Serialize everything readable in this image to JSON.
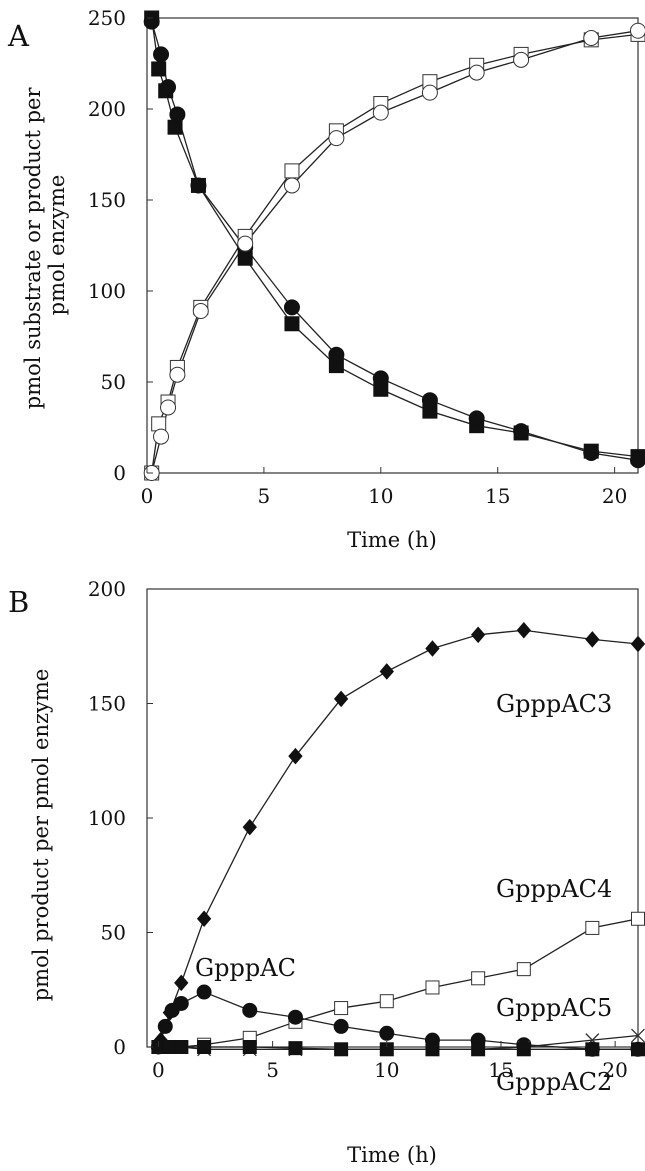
{
  "chart_data": [
    {
      "panel": "A",
      "type": "line",
      "xlabel": "Time (h)",
      "ylabel": [
        "pmol substrate or product per",
        "pmol enzyme"
      ],
      "xlim": [
        0,
        21
      ],
      "ylim": [
        0,
        250
      ],
      "xticks": [
        "0",
        "5",
        "10",
        "15",
        "20"
      ],
      "xtick_values": [
        0,
        5,
        10,
        15,
        20
      ],
      "yticks": [
        "0",
        "50",
        "100",
        "150",
        "200",
        "250"
      ],
      "ytick_values": [
        0,
        50,
        100,
        150,
        200,
        250
      ],
      "grid": false,
      "series": [
        {
          "marker": "filled-square",
          "x": [
            0.2,
            0.5,
            0.8,
            1.2,
            2.2,
            4.2,
            6.2,
            8.1,
            10,
            12.1,
            14.1,
            16,
            19,
            21
          ],
          "y": [
            250,
            222,
            210,
            190,
            158,
            118,
            82,
            59,
            46,
            34,
            26,
            22,
            12,
            9
          ]
        },
        {
          "marker": "filled-circle",
          "x": [
            0.2,
            0.6,
            0.9,
            1.3,
            2.2,
            4.2,
            6.2,
            8.1,
            10,
            12.1,
            14.1,
            16,
            19,
            21
          ],
          "y": [
            248,
            230,
            212,
            197,
            158,
            124,
            91,
            65,
            52,
            40,
            30,
            23,
            11,
            7
          ]
        },
        {
          "marker": "open-square",
          "x": [
            0.2,
            0.5,
            0.9,
            1.3,
            2.3,
            4.2,
            6.2,
            8.1,
            10,
            12.1,
            14.1,
            16,
            19,
            21
          ],
          "y": [
            0,
            27,
            39,
            58,
            91,
            130,
            166,
            188,
            203,
            215,
            224,
            230,
            238,
            241
          ]
        },
        {
          "marker": "open-circle",
          "x": [
            0.2,
            0.6,
            0.9,
            1.3,
            2.3,
            4.2,
            6.2,
            8.1,
            10,
            12.1,
            14.1,
            16,
            19,
            21
          ],
          "y": [
            0,
            20,
            36,
            54,
            89,
            126,
            158,
            184,
            198,
            209,
            220,
            227,
            239,
            243
          ]
        }
      ]
    },
    {
      "panel": "B",
      "type": "line",
      "xlabel": "Time (h)",
      "ylabel": [
        "pmol product per pmol enzyme"
      ],
      "xlim": [
        -0.5,
        21
      ],
      "ylim": [
        0,
        200
      ],
      "xticks": [
        "0",
        "5",
        "10",
        "15",
        "20"
      ],
      "xtick_values": [
        0,
        5,
        10,
        15,
        20
      ],
      "yticks": [
        "0",
        "50",
        "100",
        "150",
        "200"
      ],
      "ytick_values": [
        0,
        50,
        100,
        150,
        200
      ],
      "grid": false,
      "series": [
        {
          "name": "GpppAC3",
          "marker": "filled-diamond",
          "x": [
            0.1,
            0.5,
            1,
            2,
            4,
            6,
            8,
            10,
            12,
            14,
            16,
            19,
            21
          ],
          "y": [
            3,
            15,
            28,
            56,
            96,
            127,
            152,
            164,
            174,
            180,
            182,
            178,
            176
          ]
        },
        {
          "name": "GpppAC4",
          "marker": "open-square",
          "x": [
            0,
            0.5,
            1,
            2,
            4,
            6,
            8,
            10,
            12,
            14,
            16,
            19,
            21
          ],
          "y": [
            0,
            0,
            0,
            1,
            4,
            11,
            17,
            20,
            26,
            30,
            34,
            52,
            56
          ]
        },
        {
          "name": "GpppAC",
          "marker": "filled-circle",
          "x": [
            0,
            0.3,
            0.6,
            1,
            2,
            4,
            6,
            8,
            10,
            12,
            14,
            16,
            19,
            21
          ],
          "y": [
            0,
            9,
            16,
            19,
            24,
            16,
            13,
            9,
            6,
            3,
            3,
            1,
            -1,
            -1
          ]
        },
        {
          "name": "GpppAC5",
          "marker": "cross",
          "x": [
            0,
            0.5,
            1,
            2,
            4,
            6,
            8,
            10,
            12,
            14,
            16,
            19,
            21
          ],
          "y": [
            0,
            0,
            0,
            -1,
            -1,
            -1,
            -1,
            -1,
            -1,
            -1,
            0,
            3,
            5
          ]
        },
        {
          "name": "GpppAC2",
          "marker": "filled-square",
          "x": [
            0,
            0.5,
            1,
            2,
            4,
            6,
            8,
            10,
            12,
            14,
            16,
            19,
            21
          ],
          "y": [
            0,
            0,
            0,
            0,
            0,
            -0.5,
            -1,
            -1,
            -1,
            -1,
            -1,
            -1,
            -1
          ]
        }
      ],
      "annotations": [
        "GpppAC3",
        "GpppAC4",
        "GpppAC",
        "GpppAC5",
        "GpppAC2"
      ]
    }
  ]
}
